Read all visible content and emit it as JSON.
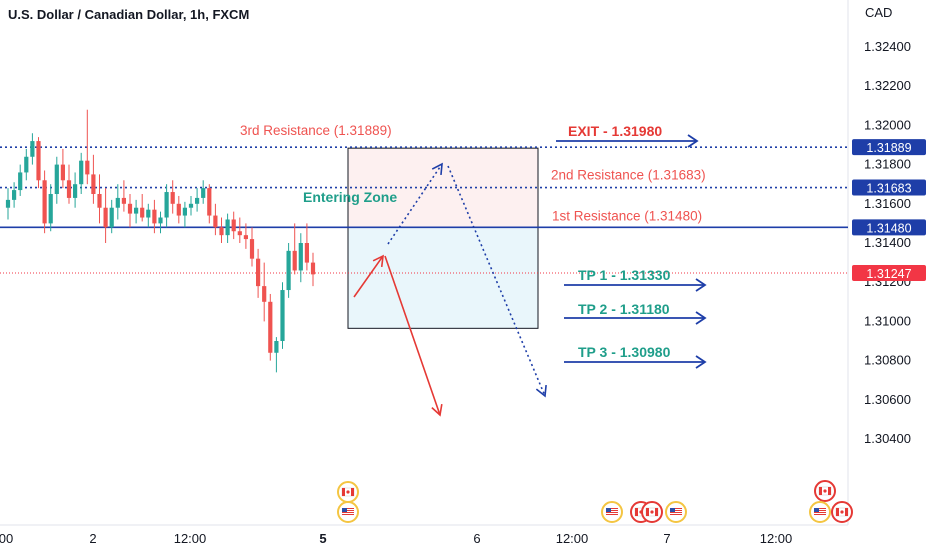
{
  "chart_data": {
    "type": "candlestick",
    "title": "U.S. Dollar / Canadian Dollar, 1h, FXCM",
    "currency_label": "CAD",
    "price_axis": {
      "ticks": [
        "1.32400",
        "1.32200",
        "1.32000",
        "1.31800",
        "1.31600",
        "1.31400",
        "1.31200",
        "1.31000",
        "1.30800",
        "1.30600",
        "1.30400"
      ],
      "ylim": [
        1.303,
        1.3248
      ]
    },
    "time_axis": {
      "ticks": [
        "00",
        "2",
        "12:00",
        "5",
        "6",
        "12:00",
        "7",
        "12:00"
      ]
    },
    "current_price": {
      "value": 1.31247,
      "label": "1.31247",
      "color": "#f23645"
    },
    "levels": [
      {
        "name": "3rd Resistance",
        "value": 1.31889,
        "label": "1.31889",
        "text": "3rd Resistance (1.31889)",
        "style": "dotted",
        "color": "#1e3ea8"
      },
      {
        "name": "2nd Resistance",
        "value": 1.31683,
        "label": "1.31683",
        "text": "2nd Resistance (1.31683)",
        "style": "dotted",
        "color": "#1e3ea8"
      },
      {
        "name": "1st Resistance",
        "value": 1.3148,
        "label": "1.31480",
        "text": "1st Resistance (1.31480)",
        "style": "solid",
        "color": "#1e3ea8"
      }
    ],
    "targets": [
      {
        "text": "EXIT - 1.31980",
        "color": "#e53935"
      },
      {
        "text": "TP 1 - 1.31330",
        "color": "#1f9e8a"
      },
      {
        "text": "TP 2 - 1.31180",
        "color": "#1f9e8a"
      },
      {
        "text": "TP 3 - 1.30980",
        "color": "#1f9e8a"
      }
    ],
    "zone": {
      "label": "Entering Zone",
      "top": 1.31889,
      "bottom": 1.3098,
      "split": 1.3148
    },
    "candles": [
      [
        1.3158,
        1.3168,
        1.3152,
        1.3162
      ],
      [
        1.3162,
        1.3171,
        1.3158,
        1.3167
      ],
      [
        1.3167,
        1.318,
        1.3164,
        1.3176
      ],
      [
        1.3176,
        1.3188,
        1.3172,
        1.3184
      ],
      [
        1.3184,
        1.3196,
        1.318,
        1.3192
      ],
      [
        1.3192,
        1.3194,
        1.3168,
        1.3172
      ],
      [
        1.3172,
        1.3177,
        1.3145,
        1.315
      ],
      [
        1.315,
        1.317,
        1.3146,
        1.3165
      ],
      [
        1.3165,
        1.3184,
        1.316,
        1.318
      ],
      [
        1.318,
        1.3188,
        1.3168,
        1.3172
      ],
      [
        1.3172,
        1.318,
        1.316,
        1.3163
      ],
      [
        1.3163,
        1.3176,
        1.3158,
        1.317
      ],
      [
        1.317,
        1.3186,
        1.3165,
        1.3182
      ],
      [
        1.3182,
        1.3208,
        1.317,
        1.3175
      ],
      [
        1.3175,
        1.3185,
        1.316,
        1.3165
      ],
      [
        1.3165,
        1.3175,
        1.315,
        1.3158
      ],
      [
        1.3158,
        1.3168,
        1.314,
        1.3148
      ],
      [
        1.3148,
        1.3162,
        1.3145,
        1.3158
      ],
      [
        1.3158,
        1.317,
        1.3152,
        1.3163
      ],
      [
        1.3163,
        1.3172,
        1.3156,
        1.316
      ],
      [
        1.316,
        1.3165,
        1.3148,
        1.3155
      ],
      [
        1.3155,
        1.3162,
        1.315,
        1.3158
      ],
      [
        1.3158,
        1.3165,
        1.3151,
        1.3153
      ],
      [
        1.3153,
        1.316,
        1.3148,
        1.3157
      ],
      [
        1.3157,
        1.3162,
        1.3145,
        1.315
      ],
      [
        1.315,
        1.3156,
        1.3145,
        1.3153
      ],
      [
        1.3153,
        1.317,
        1.3148,
        1.3166
      ],
      [
        1.3166,
        1.3172,
        1.3155,
        1.316
      ],
      [
        1.316,
        1.3164,
        1.315,
        1.3154
      ],
      [
        1.3154,
        1.3161,
        1.3148,
        1.3158
      ],
      [
        1.3158,
        1.3164,
        1.3154,
        1.316
      ],
      [
        1.316,
        1.3168,
        1.3156,
        1.3163
      ],
      [
        1.3163,
        1.3172,
        1.316,
        1.3168
      ],
      [
        1.3168,
        1.317,
        1.315,
        1.3154
      ],
      [
        1.3154,
        1.316,
        1.3144,
        1.3148
      ],
      [
        1.3148,
        1.3153,
        1.314,
        1.3144
      ],
      [
        1.3144,
        1.3155,
        1.314,
        1.3152
      ],
      [
        1.3152,
        1.3156,
        1.3142,
        1.3146
      ],
      [
        1.3146,
        1.3153,
        1.314,
        1.3144
      ],
      [
        1.3144,
        1.315,
        1.3137,
        1.3142
      ],
      [
        1.3142,
        1.3148,
        1.3128,
        1.3132
      ],
      [
        1.3132,
        1.3137,
        1.3112,
        1.3118
      ],
      [
        1.3118,
        1.313,
        1.31,
        1.311
      ],
      [
        1.311,
        1.3114,
        1.308,
        1.3084
      ],
      [
        1.3084,
        1.3092,
        1.3074,
        1.309
      ],
      [
        1.309,
        1.312,
        1.3086,
        1.3116
      ],
      [
        1.3116,
        1.314,
        1.3112,
        1.3136
      ],
      [
        1.3136,
        1.315,
        1.3124,
        1.3126
      ],
      [
        1.3126,
        1.3145,
        1.312,
        1.314
      ],
      [
        1.314,
        1.315,
        1.3126,
        1.313
      ],
      [
        1.313,
        1.3135,
        1.3118,
        1.3124
      ]
    ]
  },
  "events": {
    "group1": [
      {
        "flag": "canada"
      },
      {
        "flag": "usa"
      }
    ],
    "group2": [
      {
        "flag": "usa"
      },
      {
        "flag": "canada"
      },
      {
        "flag": "canada"
      },
      {
        "flag": "usa"
      }
    ],
    "group3": [
      {
        "flag": "canada"
      },
      {
        "flag": "usa"
      },
      {
        "flag": "canada"
      }
    ]
  },
  "colors": {
    "up": "#26a69a",
    "down": "#ef5350",
    "level_blue": "#1e3ea8",
    "zone_top_fill": "#fdf0f0",
    "zone_bottom_fill": "#e9f6fb",
    "arrow_red": "#e53935",
    "arrow_blue": "#1e3ea8",
    "teal_text": "#1f9e8a"
  }
}
